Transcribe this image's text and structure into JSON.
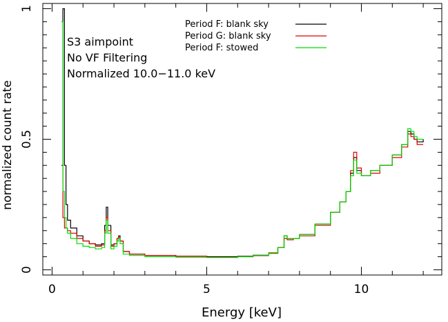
{
  "chart_data": {
    "type": "line",
    "title": "",
    "xlabel": "Energy [keV]",
    "ylabel": "normalized count rate",
    "xlim": [
      -0.3,
      12.6
    ],
    "ylim": [
      -0.02,
      1.02
    ],
    "x_ticks": [
      {
        "value": 0,
        "label": "0"
      },
      {
        "value": 5,
        "label": "5"
      },
      {
        "value": 10,
        "label": "10"
      }
    ],
    "y_ticks": [
      {
        "value": 0,
        "label": "0"
      },
      {
        "value": 0.5,
        "label": "0.5"
      },
      {
        "value": 1,
        "label": "1"
      }
    ],
    "annotations": [
      "S3 aimpoint",
      "No VF Filtering",
      "Normalized 10.0−11.0 keV"
    ],
    "legend_position": "top-center",
    "series": [
      {
        "name": "Period F: blank sky",
        "color": "#000000",
        "points": [
          [
            0.3,
            0.4
          ],
          [
            0.35,
            1.0
          ],
          [
            0.4,
            0.4
          ],
          [
            0.45,
            0.25
          ],
          [
            0.5,
            0.19
          ],
          [
            0.6,
            0.16
          ],
          [
            0.8,
            0.13
          ],
          [
            1.0,
            0.11
          ],
          [
            1.2,
            0.1
          ],
          [
            1.4,
            0.095
          ],
          [
            1.6,
            0.1
          ],
          [
            1.7,
            0.17
          ],
          [
            1.75,
            0.24
          ],
          [
            1.8,
            0.17
          ],
          [
            1.9,
            0.095
          ],
          [
            2.0,
            0.1
          ],
          [
            2.1,
            0.12
          ],
          [
            2.15,
            0.13
          ],
          [
            2.2,
            0.11
          ],
          [
            2.3,
            0.07
          ],
          [
            2.5,
            0.06
          ],
          [
            3.0,
            0.055
          ],
          [
            4.0,
            0.052
          ],
          [
            5.0,
            0.05
          ],
          [
            6.0,
            0.052
          ],
          [
            6.5,
            0.056
          ],
          [
            7.0,
            0.065
          ],
          [
            7.3,
            0.085
          ],
          [
            7.5,
            0.13
          ],
          [
            7.6,
            0.12
          ],
          [
            7.8,
            0.12
          ],
          [
            8.0,
            0.135
          ],
          [
            8.5,
            0.175
          ],
          [
            9.0,
            0.22
          ],
          [
            9.3,
            0.26
          ],
          [
            9.5,
            0.3
          ],
          [
            9.65,
            0.37
          ],
          [
            9.75,
            0.43
          ],
          [
            9.85,
            0.38
          ],
          [
            10.0,
            0.36
          ],
          [
            10.3,
            0.38
          ],
          [
            10.6,
            0.4
          ],
          [
            11.0,
            0.44
          ],
          [
            11.3,
            0.48
          ],
          [
            11.5,
            0.53
          ],
          [
            11.6,
            0.52
          ],
          [
            11.7,
            0.5
          ],
          [
            11.8,
            0.49
          ],
          [
            12.0,
            0.5
          ]
        ]
      },
      {
        "name": "Period G: blank sky",
        "color": "#e00000",
        "points": [
          [
            0.3,
            0.4
          ],
          [
            0.35,
            0.2
          ],
          [
            0.4,
            0.16
          ],
          [
            0.5,
            0.15
          ],
          [
            0.6,
            0.14
          ],
          [
            0.8,
            0.12
          ],
          [
            1.0,
            0.11
          ],
          [
            1.2,
            0.1
          ],
          [
            1.4,
            0.09
          ],
          [
            1.6,
            0.095
          ],
          [
            1.7,
            0.15
          ],
          [
            1.75,
            0.2
          ],
          [
            1.8,
            0.15
          ],
          [
            1.9,
            0.09
          ],
          [
            2.0,
            0.1
          ],
          [
            2.1,
            0.12
          ],
          [
            2.15,
            0.125
          ],
          [
            2.2,
            0.11
          ],
          [
            2.3,
            0.07
          ],
          [
            2.5,
            0.06
          ],
          [
            3.0,
            0.055
          ],
          [
            4.0,
            0.052
          ],
          [
            5.0,
            0.048
          ],
          [
            6.0,
            0.05
          ],
          [
            6.5,
            0.054
          ],
          [
            7.0,
            0.063
          ],
          [
            7.3,
            0.085
          ],
          [
            7.5,
            0.12
          ],
          [
            7.6,
            0.115
          ],
          [
            7.8,
            0.12
          ],
          [
            8.0,
            0.13
          ],
          [
            8.5,
            0.17
          ],
          [
            9.0,
            0.22
          ],
          [
            9.3,
            0.26
          ],
          [
            9.5,
            0.3
          ],
          [
            9.65,
            0.38
          ],
          [
            9.75,
            0.45
          ],
          [
            9.85,
            0.39
          ],
          [
            10.0,
            0.36
          ],
          [
            10.3,
            0.37
          ],
          [
            10.6,
            0.4
          ],
          [
            11.0,
            0.43
          ],
          [
            11.3,
            0.47
          ],
          [
            11.5,
            0.52
          ],
          [
            11.6,
            0.51
          ],
          [
            11.7,
            0.5
          ],
          [
            11.8,
            0.48
          ],
          [
            12.0,
            0.48
          ]
        ]
      },
      {
        "name": "Period F: stowed",
        "color": "#00dd00",
        "points": [
          [
            0.3,
            0.95
          ],
          [
            0.35,
            0.3
          ],
          [
            0.4,
            0.2
          ],
          [
            0.45,
            0.16
          ],
          [
            0.5,
            0.14
          ],
          [
            0.6,
            0.12
          ],
          [
            0.8,
            0.1
          ],
          [
            1.0,
            0.09
          ],
          [
            1.2,
            0.085
          ],
          [
            1.4,
            0.08
          ],
          [
            1.6,
            0.085
          ],
          [
            1.7,
            0.14
          ],
          [
            1.75,
            0.19
          ],
          [
            1.8,
            0.14
          ],
          [
            1.9,
            0.08
          ],
          [
            2.0,
            0.09
          ],
          [
            2.1,
            0.11
          ],
          [
            2.15,
            0.12
          ],
          [
            2.2,
            0.1
          ],
          [
            2.3,
            0.06
          ],
          [
            2.5,
            0.055
          ],
          [
            3.0,
            0.05
          ],
          [
            4.0,
            0.048
          ],
          [
            5.0,
            0.047
          ],
          [
            6.0,
            0.05
          ],
          [
            6.5,
            0.055
          ],
          [
            7.0,
            0.065
          ],
          [
            7.3,
            0.085
          ],
          [
            7.5,
            0.13
          ],
          [
            7.6,
            0.12
          ],
          [
            7.8,
            0.12
          ],
          [
            8.0,
            0.135
          ],
          [
            8.5,
            0.175
          ],
          [
            9.0,
            0.22
          ],
          [
            9.3,
            0.26
          ],
          [
            9.5,
            0.3
          ],
          [
            9.65,
            0.36
          ],
          [
            9.75,
            0.42
          ],
          [
            9.85,
            0.37
          ],
          [
            10.0,
            0.36
          ],
          [
            10.3,
            0.38
          ],
          [
            10.6,
            0.4
          ],
          [
            11.0,
            0.44
          ],
          [
            11.3,
            0.48
          ],
          [
            11.5,
            0.54
          ],
          [
            11.6,
            0.53
          ],
          [
            11.7,
            0.51
          ],
          [
            11.8,
            0.5
          ],
          [
            12.0,
            0.5
          ]
        ]
      }
    ]
  }
}
